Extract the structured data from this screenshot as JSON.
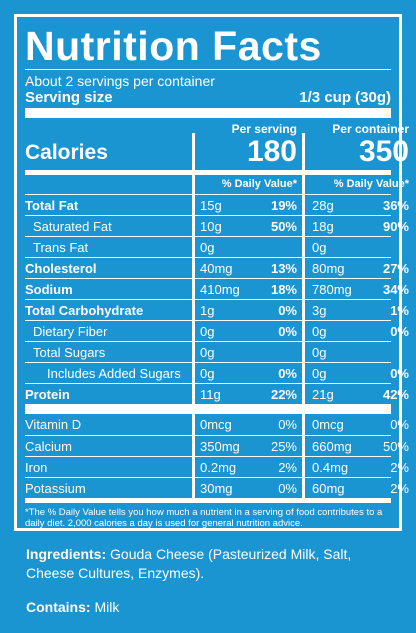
{
  "title": "Nutrition Facts",
  "servings_per_container": "About 2 servings per container",
  "serving_size_label": "Serving size",
  "serving_size_value": "1/3 cup (30g)",
  "calories_label": "Calories",
  "col1": {
    "header": "Per serving",
    "calories": "180",
    "dv_header": "% Daily Value*"
  },
  "col2": {
    "header": "Per container",
    "calories": "350",
    "dv_header": "% Daily Value*"
  },
  "nutrients": [
    {
      "name": "Total Fat",
      "s_amt": "15g",
      "s_dv": "19%",
      "c_amt": "28g",
      "c_dv": "36%"
    },
    {
      "name": "Saturated Fat",
      "s_amt": "10g",
      "s_dv": "50%",
      "c_amt": "18g",
      "c_dv": "90%"
    },
    {
      "name": "Trans Fat",
      "s_amt": "0g",
      "s_dv": "",
      "c_amt": "0g",
      "c_dv": ""
    },
    {
      "name": "Cholesterol",
      "s_amt": "40mg",
      "s_dv": "13%",
      "c_amt": "80mg",
      "c_dv": "27%"
    },
    {
      "name": "Sodium",
      "s_amt": "410mg",
      "s_dv": "18%",
      "c_amt": "780mg",
      "c_dv": "34%"
    },
    {
      "name": "Total Carbohydrate",
      "s_amt": "1g",
      "s_dv": "0%",
      "c_amt": "3g",
      "c_dv": "1%"
    },
    {
      "name": "Dietary Fiber",
      "s_amt": "0g",
      "s_dv": "0%",
      "c_amt": "0g",
      "c_dv": "0%"
    },
    {
      "name": "Total Sugars",
      "s_amt": "0g",
      "s_dv": "",
      "c_amt": "0g",
      "c_dv": ""
    },
    {
      "name": "Includes Added Sugars",
      "s_amt": "0g",
      "s_dv": "0%",
      "c_amt": "0g",
      "c_dv": "0%"
    },
    {
      "name": "Protein",
      "s_amt": "11g",
      "s_dv": "22%",
      "c_amt": "21g",
      "c_dv": "42%"
    }
  ],
  "vitamins": [
    {
      "name": "Vitamin D",
      "s_amt": "0mcg",
      "s_dv": "0%",
      "c_amt": "0mcg",
      "c_dv": "0%"
    },
    {
      "name": "Calcium",
      "s_amt": "350mg",
      "s_dv": "25%",
      "c_amt": "660mg",
      "c_dv": "50%"
    },
    {
      "name": "Iron",
      "s_amt": "0.2mg",
      "s_dv": "2%",
      "c_amt": "0.4mg",
      "c_dv": "2%"
    },
    {
      "name": "Potassium",
      "s_amt": "30mg",
      "s_dv": "0%",
      "c_amt": "60mg",
      "c_dv": "2%"
    }
  ],
  "footnote": "*The % Daily Value tells you how much a nutrient in a serving of food contributes to a daily diet. 2,000 calories a day is used for general nutrition advice.",
  "ingredients_label": "Ingredients:",
  "ingredients_text": "Gouda Cheese (Pasteurized Milk, Salt, Cheese Cultures, Enzymes).",
  "contains_label": "Contains:",
  "contains_text": "Milk"
}
